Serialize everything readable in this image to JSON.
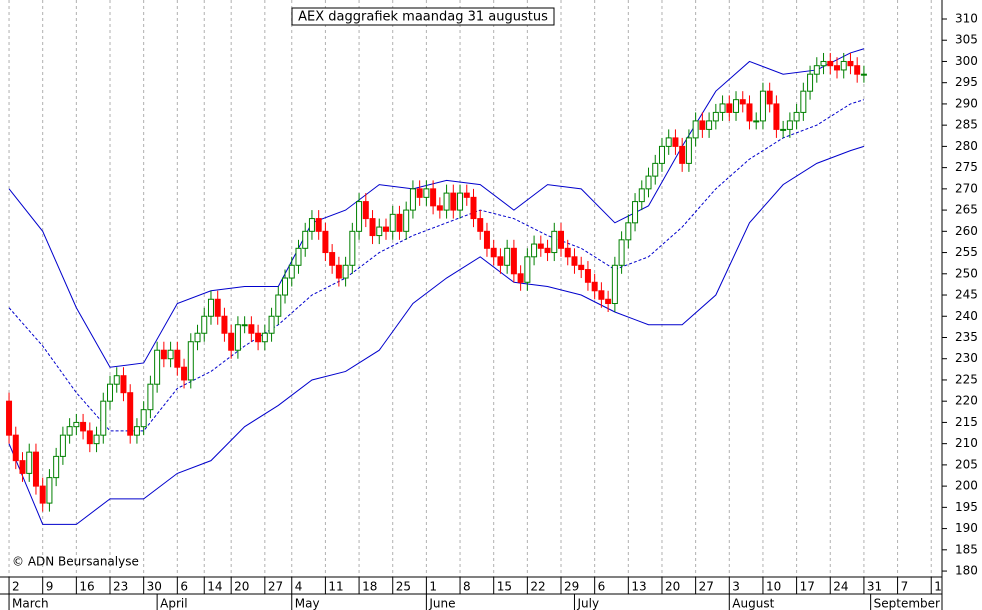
{
  "chart_data": {
    "type": "candlestick",
    "title": "AEX daggrafiek maandag 31 augustus",
    "annotation": "© ADN Beursanalyse",
    "up_color": "#008000",
    "down_color": "#ff0000",
    "open": [
      220,
      212,
      206,
      203,
      208,
      200,
      196,
      202,
      207,
      212,
      214,
      215,
      213,
      210,
      212,
      220,
      224,
      226,
      222,
      212,
      214,
      218,
      224,
      232,
      230,
      232,
      228,
      225,
      234,
      236,
      240,
      244,
      240,
      236,
      232,
      238,
      238,
      236,
      234,
      236,
      240,
      245,
      249,
      252,
      256,
      260,
      263,
      260,
      255,
      252,
      249,
      252,
      260,
      267,
      263,
      259,
      261,
      260,
      264,
      260,
      265,
      270,
      268,
      270,
      266,
      265,
      269,
      265,
      269,
      268,
      263,
      260,
      256,
      254,
      252,
      256,
      250,
      248,
      254,
      257,
      256,
      255,
      260,
      256,
      254,
      252,
      251,
      248,
      246,
      244,
      243,
      252,
      258,
      262,
      267,
      270,
      273,
      276,
      280,
      282,
      280,
      276,
      282,
      286,
      284,
      286,
      288,
      290,
      288,
      291,
      290,
      286,
      286,
      293,
      290,
      284,
      284,
      286,
      288,
      293,
      297,
      299,
      300,
      299,
      298,
      300,
      299,
      297
    ],
    "high": [
      222,
      214,
      208,
      210,
      210,
      202,
      204,
      209,
      214,
      216,
      217,
      217,
      215,
      214,
      222,
      226,
      228,
      228,
      224,
      216,
      220,
      226,
      234,
      234,
      234,
      234,
      230,
      236,
      238,
      242,
      246,
      246,
      242,
      238,
      240,
      240,
      240,
      238,
      238,
      242,
      247,
      251,
      254,
      258,
      262,
      265,
      265,
      262,
      257,
      254,
      254,
      262,
      269,
      269,
      265,
      263,
      263,
      266,
      266,
      267,
      272,
      272,
      272,
      272,
      268,
      271,
      271,
      271,
      271,
      270,
      265,
      262,
      258,
      256,
      258,
      258,
      252,
      256,
      259,
      259,
      258,
      262,
      262,
      258,
      256,
      254,
      253,
      250,
      248,
      246,
      254,
      260,
      264,
      269,
      272,
      275,
      278,
      282,
      284,
      284,
      282,
      284,
      288,
      288,
      288,
      290,
      292,
      292,
      293,
      293,
      292,
      288,
      295,
      295,
      292,
      286,
      288,
      290,
      295,
      299,
      301,
      302,
      302,
      301,
      302,
      302,
      301,
      299
    ],
    "low": [
      210,
      204,
      201,
      201,
      198,
      194,
      194,
      200,
      205,
      210,
      212,
      211,
      208,
      208,
      210,
      218,
      222,
      220,
      210,
      210,
      212,
      216,
      222,
      228,
      228,
      226,
      223,
      223,
      232,
      234,
      238,
      238,
      234,
      230,
      230,
      236,
      234,
      232,
      232,
      234,
      238,
      243,
      247,
      250,
      254,
      258,
      258,
      253,
      250,
      247,
      247,
      250,
      258,
      261,
      257,
      257,
      258,
      258,
      258,
      258,
      263,
      266,
      266,
      264,
      263,
      263,
      263,
      263,
      266,
      261,
      258,
      254,
      252,
      250,
      250,
      248,
      246,
      246,
      252,
      254,
      253,
      253,
      254,
      252,
      250,
      249,
      246,
      244,
      242,
      241,
      241,
      250,
      256,
      260,
      265,
      268,
      271,
      274,
      278,
      278,
      274,
      274,
      280,
      282,
      282,
      284,
      286,
      286,
      286,
      288,
      284,
      284,
      284,
      288,
      282,
      282,
      282,
      284,
      286,
      291,
      295,
      297,
      297,
      296,
      296,
      297,
      295,
      295
    ],
    "close": [
      212,
      206,
      203,
      208,
      200,
      196,
      202,
      207,
      212,
      214,
      215,
      213,
      210,
      212,
      220,
      224,
      226,
      222,
      212,
      214,
      218,
      224,
      232,
      230,
      232,
      228,
      225,
      234,
      236,
      240,
      244,
      240,
      236,
      232,
      238,
      238,
      236,
      234,
      236,
      240,
      245,
      249,
      252,
      256,
      260,
      263,
      260,
      255,
      252,
      249,
      252,
      260,
      267,
      263,
      259,
      261,
      260,
      264,
      260,
      265,
      270,
      268,
      270,
      266,
      265,
      269,
      265,
      269,
      268,
      263,
      260,
      256,
      254,
      252,
      256,
      250,
      248,
      254,
      257,
      256,
      255,
      260,
      256,
      254,
      252,
      251,
      248,
      246,
      244,
      243,
      252,
      258,
      262,
      267,
      270,
      273,
      276,
      280,
      282,
      280,
      276,
      282,
      286,
      284,
      286,
      288,
      290,
      288,
      291,
      290,
      286,
      286,
      293,
      290,
      284,
      284,
      286,
      288,
      293,
      297,
      299,
      300,
      299,
      298,
      300,
      299,
      297,
      297
    ],
    "bands": [
      {
        "color": "#0000cc",
        "line_style": "solid",
        "x": [
          0,
          5,
          10,
          15,
          20,
          25,
          30,
          35,
          40,
          45,
          50,
          55,
          60,
          65,
          70,
          75,
          80,
          85,
          90,
          95,
          100,
          105,
          110,
          115,
          120,
          125,
          127
        ],
        "values": [
          270,
          260,
          242,
          228,
          229,
          243,
          246,
          247,
          247,
          262,
          265,
          271,
          270,
          272,
          271,
          265,
          271,
          270,
          262,
          266,
          280,
          293,
          300,
          297,
          298,
          302,
          303
        ]
      },
      {
        "color": "#0000cc",
        "line_style": "dashed",
        "x": [
          0,
          5,
          10,
          15,
          20,
          25,
          30,
          35,
          40,
          45,
          50,
          55,
          60,
          65,
          70,
          75,
          80,
          85,
          90,
          95,
          100,
          105,
          110,
          115,
          120,
          125,
          127
        ],
        "values": [
          242,
          233,
          222,
          213,
          213,
          223,
          227,
          233,
          238,
          245,
          249,
          255,
          259,
          262,
          265,
          263,
          259,
          256,
          251,
          254,
          261,
          270,
          277,
          282,
          285,
          290,
          291
        ]
      },
      {
        "color": "#0000cc",
        "line_style": "solid",
        "x": [
          0,
          5,
          10,
          15,
          20,
          25,
          30,
          35,
          40,
          45,
          50,
          55,
          60,
          65,
          70,
          75,
          80,
          85,
          90,
          95,
          100,
          105,
          110,
          115,
          120,
          125,
          127
        ],
        "values": [
          210,
          191,
          191,
          197,
          197,
          203,
          206,
          214,
          219,
          225,
          227,
          232,
          243,
          249,
          254,
          248,
          247,
          245,
          241,
          238,
          238,
          245,
          262,
          271,
          276,
          279,
          280
        ]
      }
    ],
    "xlim": [
      -0.6,
      138.6
    ],
    "xticks": [
      {
        "value": 0,
        "label": "2"
      },
      {
        "value": 5,
        "label": "9"
      },
      {
        "value": 10,
        "label": "16"
      },
      {
        "value": 15,
        "label": "23"
      },
      {
        "value": 20,
        "label": "30"
      },
      {
        "value": 25,
        "label": "6"
      },
      {
        "value": 29,
        "label": "14"
      },
      {
        "value": 33,
        "label": "20"
      },
      {
        "value": 38,
        "label": "27"
      },
      {
        "value": 42,
        "label": "4"
      },
      {
        "value": 47,
        "label": "11"
      },
      {
        "value": 52,
        "label": "18"
      },
      {
        "value": 57,
        "label": "25"
      },
      {
        "value": 62,
        "label": "1"
      },
      {
        "value": 67,
        "label": "8"
      },
      {
        "value": 72,
        "label": "15"
      },
      {
        "value": 77,
        "label": "22"
      },
      {
        "value": 82,
        "label": "29"
      },
      {
        "value": 87,
        "label": "6"
      },
      {
        "value": 92,
        "label": "13"
      },
      {
        "value": 97,
        "label": "20"
      },
      {
        "value": 102,
        "label": "27"
      },
      {
        "value": 107,
        "label": "3"
      },
      {
        "value": 112,
        "label": "10"
      },
      {
        "value": 117,
        "label": "17"
      },
      {
        "value": 122,
        "label": "24"
      },
      {
        "value": 127,
        "label": "31"
      },
      {
        "value": 132,
        "label": "7"
      },
      {
        "value": 137,
        "label": "1"
      }
    ],
    "months": [
      {
        "value": 0,
        "label": "March"
      },
      {
        "value": 22,
        "label": "April"
      },
      {
        "value": 42,
        "label": "May"
      },
      {
        "value": 62,
        "label": "June"
      },
      {
        "value": 84,
        "label": "July"
      },
      {
        "value": 107,
        "label": "August"
      },
      {
        "value": 128,
        "label": "September"
      }
    ],
    "ylim": [
      178.6,
      314
    ],
    "yticks": [
      180,
      185,
      190,
      195,
      200,
      205,
      210,
      215,
      220,
      225,
      230,
      235,
      240,
      245,
      250,
      255,
      260,
      265,
      270,
      275,
      280,
      285,
      290,
      295,
      300,
      305,
      310
    ],
    "grid": true
  }
}
